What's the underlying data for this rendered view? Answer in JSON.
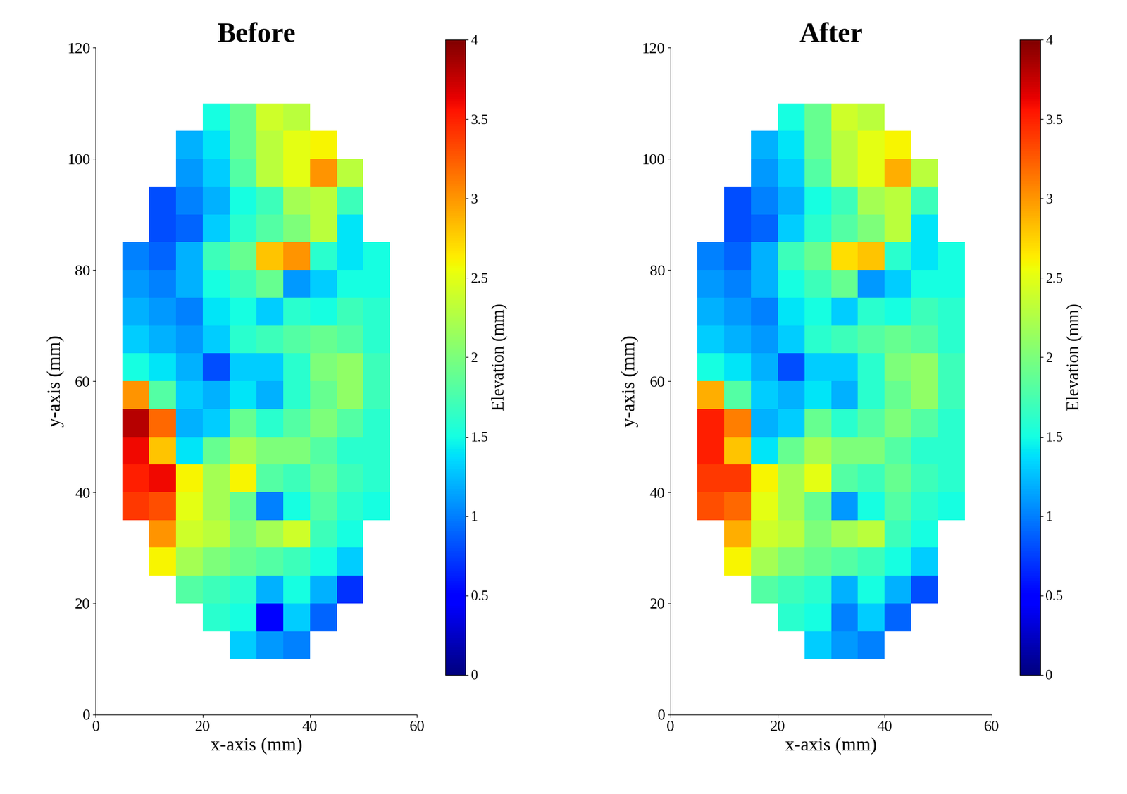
{
  "chart_data": [
    {
      "type": "heatmap",
      "title": "Before",
      "xlabel": "x-axis (mm)",
      "ylabel": "y-axis (mm)",
      "xlim": [
        0,
        60
      ],
      "ylim": [
        0,
        120
      ],
      "xticks": [
        0,
        20,
        40,
        60
      ],
      "yticks": [
        0,
        20,
        40,
        60,
        80,
        100,
        120
      ],
      "color": "jet",
      "x_edges": [
        5,
        10,
        15,
        20,
        25,
        30,
        35,
        40,
        45,
        50,
        55
      ],
      "y_edges": [
        10,
        15,
        20,
        25,
        30,
        35,
        40,
        45,
        50,
        55,
        60,
        65,
        70,
        75,
        80,
        85,
        90,
        95,
        100,
        105,
        110
      ],
      "cells": [
        [
          null,
          null,
          null,
          null,
          1.3,
          1.1,
          1.0,
          null,
          null,
          null
        ],
        [
          null,
          null,
          null,
          1.6,
          1.5,
          0.5,
          1.3,
          0.9,
          null,
          null
        ],
        [
          null,
          null,
          1.8,
          1.7,
          1.6,
          1.2,
          1.5,
          1.2,
          0.7,
          null
        ],
        [
          null,
          2.6,
          2.2,
          2.0,
          1.9,
          1.8,
          1.7,
          1.5,
          1.3,
          null
        ],
        [
          null,
          3.0,
          2.4,
          2.3,
          2.0,
          2.2,
          2.4,
          1.7,
          1.5,
          null
        ],
        [
          3.4,
          3.3,
          2.5,
          2.2,
          1.9,
          1.0,
          1.5,
          1.8,
          1.6,
          1.5
        ],
        [
          3.5,
          3.6,
          2.6,
          2.2,
          2.6,
          1.8,
          1.7,
          1.9,
          1.7,
          1.6
        ],
        [
          3.6,
          2.8,
          1.4,
          1.9,
          2.2,
          2.0,
          2.0,
          1.8,
          1.6,
          1.6
        ],
        [
          3.8,
          3.2,
          1.2,
          1.3,
          1.9,
          1.6,
          1.8,
          2.0,
          1.8,
          1.6
        ],
        [
          3.0,
          1.8,
          1.3,
          1.2,
          1.4,
          1.2,
          1.6,
          1.9,
          2.1,
          1.7
        ],
        [
          1.5,
          1.4,
          1.2,
          0.8,
          1.3,
          1.3,
          1.6,
          2.0,
          2.1,
          1.7
        ],
        [
          1.3,
          1.2,
          1.1,
          1.3,
          1.6,
          1.7,
          1.8,
          1.9,
          1.8,
          1.6
        ],
        [
          1.2,
          1.1,
          1.0,
          1.4,
          1.5,
          1.3,
          1.6,
          1.5,
          1.7,
          1.6
        ],
        [
          1.1,
          1.0,
          1.2,
          1.5,
          1.7,
          1.9,
          1.1,
          1.3,
          1.5,
          1.5
        ],
        [
          1.0,
          0.9,
          1.2,
          1.7,
          1.9,
          2.8,
          3.0,
          1.6,
          1.4,
          1.5
        ],
        [
          null,
          0.8,
          0.9,
          1.3,
          1.6,
          1.8,
          2.0,
          2.3,
          1.4,
          null
        ],
        [
          null,
          0.8,
          1.0,
          1.2,
          1.5,
          1.7,
          2.2,
          2.3,
          1.7,
          null
        ],
        [
          null,
          null,
          1.1,
          1.3,
          1.8,
          2.3,
          2.5,
          3.0,
          2.3,
          null
        ],
        [
          null,
          null,
          1.2,
          1.4,
          1.9,
          2.3,
          2.5,
          2.6,
          null,
          null
        ],
        [
          null,
          null,
          null,
          1.5,
          1.9,
          2.4,
          2.3,
          null,
          null,
          null
        ]
      ],
      "colorbar": {
        "label": "Elevation (mm)",
        "range": [
          0,
          4
        ],
        "ticks": [
          0,
          0.5,
          1,
          1.5,
          2,
          2.5,
          3,
          3.5,
          4
        ]
      }
    },
    {
      "type": "heatmap",
      "title": "After",
      "xlabel": "x-axis (mm)",
      "ylabel": "y-axis (mm)",
      "xlim": [
        0,
        60
      ],
      "ylim": [
        0,
        120
      ],
      "xticks": [
        0,
        20,
        40,
        60
      ],
      "yticks": [
        0,
        20,
        40,
        60,
        80,
        100,
        120
      ],
      "color": "jet",
      "x_edges": [
        5,
        10,
        15,
        20,
        25,
        30,
        35,
        40,
        45,
        50,
        55
      ],
      "y_edges": [
        10,
        15,
        20,
        25,
        30,
        35,
        40,
        45,
        50,
        55,
        60,
        65,
        70,
        75,
        80,
        85,
        90,
        95,
        100,
        105,
        110
      ],
      "cells": [
        [
          null,
          null,
          null,
          null,
          1.3,
          1.1,
          1.0,
          null,
          null,
          null
        ],
        [
          null,
          null,
          null,
          1.6,
          1.5,
          1.0,
          1.3,
          0.9,
          null,
          null
        ],
        [
          null,
          null,
          1.8,
          1.7,
          1.6,
          1.2,
          1.5,
          1.2,
          0.8,
          null
        ],
        [
          null,
          2.6,
          2.2,
          2.0,
          1.9,
          1.8,
          1.7,
          1.5,
          1.3,
          null
        ],
        [
          null,
          2.9,
          2.4,
          2.3,
          2.0,
          2.2,
          2.3,
          1.7,
          1.5,
          null
        ],
        [
          3.3,
          3.2,
          2.5,
          2.2,
          1.9,
          1.1,
          1.5,
          1.8,
          1.6,
          1.5
        ],
        [
          3.4,
          3.4,
          2.6,
          2.2,
          2.5,
          1.8,
          1.7,
          1.9,
          1.7,
          1.6
        ],
        [
          3.5,
          2.8,
          1.4,
          1.9,
          2.2,
          2.0,
          2.0,
          1.8,
          1.6,
          1.6
        ],
        [
          3.5,
          3.1,
          1.2,
          1.3,
          1.9,
          1.6,
          1.8,
          2.0,
          1.8,
          1.6
        ],
        [
          2.9,
          1.8,
          1.3,
          1.2,
          1.4,
          1.2,
          1.6,
          1.9,
          2.1,
          1.7
        ],
        [
          1.5,
          1.4,
          1.2,
          0.8,
          1.3,
          1.3,
          1.6,
          2.0,
          2.1,
          1.7
        ],
        [
          1.3,
          1.2,
          1.1,
          1.3,
          1.6,
          1.7,
          1.8,
          1.9,
          1.8,
          1.6
        ],
        [
          1.2,
          1.1,
          1.0,
          1.4,
          1.5,
          1.3,
          1.6,
          1.5,
          1.7,
          1.6
        ],
        [
          1.1,
          1.0,
          1.2,
          1.5,
          1.7,
          1.9,
          1.1,
          1.3,
          1.5,
          1.5
        ],
        [
          1.0,
          0.9,
          1.2,
          1.7,
          1.9,
          2.7,
          2.8,
          1.6,
          1.4,
          1.5
        ],
        [
          null,
          0.8,
          0.9,
          1.3,
          1.6,
          1.8,
          2.0,
          2.3,
          1.4,
          null
        ],
        [
          null,
          0.8,
          1.0,
          1.2,
          1.5,
          1.7,
          2.2,
          2.3,
          1.7,
          null
        ],
        [
          null,
          null,
          1.1,
          1.3,
          1.8,
          2.3,
          2.5,
          2.9,
          2.3,
          null
        ],
        [
          null,
          null,
          1.2,
          1.4,
          1.9,
          2.3,
          2.5,
          2.6,
          null,
          null
        ],
        [
          null,
          null,
          null,
          1.5,
          1.9,
          2.4,
          2.3,
          null,
          null,
          null
        ]
      ],
      "colorbar": {
        "label": "Elevation (mm)",
        "range": [
          0,
          4
        ],
        "ticks": [
          0,
          0.5,
          1,
          1.5,
          2,
          2.5,
          3,
          3.5,
          4
        ]
      }
    }
  ]
}
